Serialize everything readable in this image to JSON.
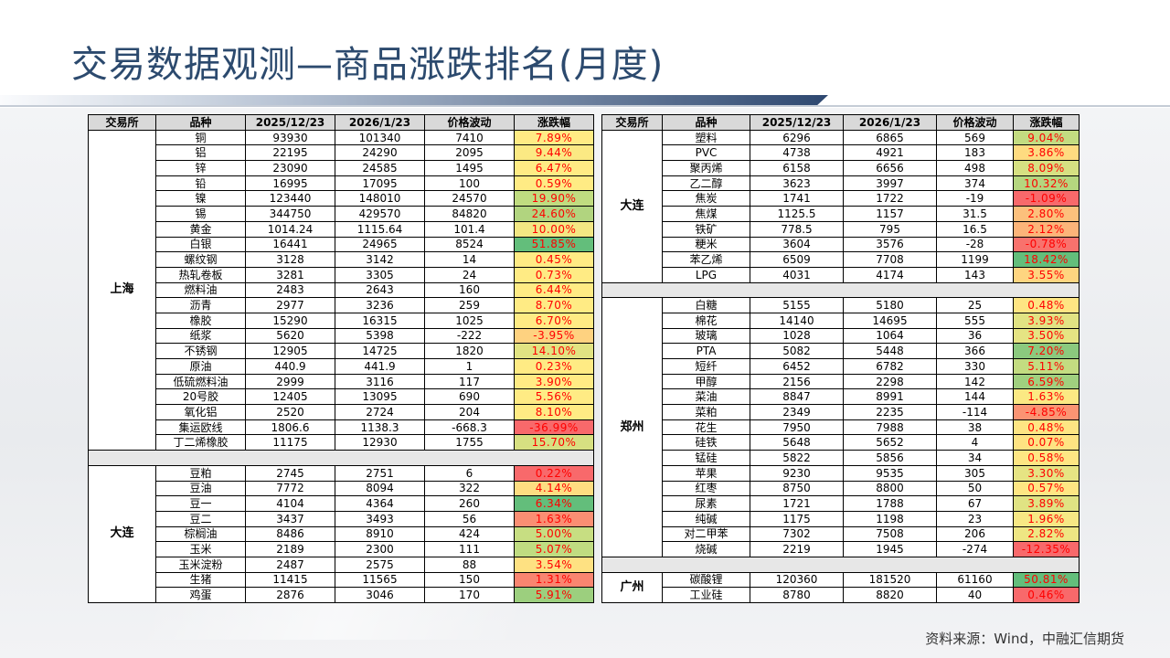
{
  "title": "交易数据观测—商品涨跌排名(月度)",
  "source": "资料来源：Wind，中融汇信期货",
  "headers": [
    "交易所",
    "品种",
    "2025/12/23",
    "2026/1/23",
    "价格波动",
    "涨跌幅"
  ],
  "left_groups": [
    {
      "exchange": "上海",
      "rows": [
        {
          "name": "铜",
          "p1": "93930",
          "p2": "101340",
          "diff": "7410",
          "pct": "7.89%",
          "color": "#ffeb84"
        },
        {
          "name": "铝",
          "p1": "22195",
          "p2": "24290",
          "diff": "2095",
          "pct": "9.44%",
          "color": "#fbe983"
        },
        {
          "name": "锌",
          "p1": "23090",
          "p2": "24585",
          "diff": "1495",
          "pct": "6.47%",
          "color": "#ffeb84"
        },
        {
          "name": "铅",
          "p1": "16995",
          "p2": "17095",
          "diff": "100",
          "pct": "0.59%",
          "color": "#ffeb84"
        },
        {
          "name": "镍",
          "p1": "123440",
          "p2": "148010",
          "diff": "24570",
          "pct": "19.90%",
          "color": "#c0dc80"
        },
        {
          "name": "锡",
          "p1": "344750",
          "p2": "429570",
          "diff": "84820",
          "pct": "24.60%",
          "color": "#b1d47f"
        },
        {
          "name": "黄金",
          "p1": "1014.24",
          "p2": "1115.64",
          "diff": "101.4",
          "pct": "10.00%",
          "color": "#f3e783"
        },
        {
          "name": "白银",
          "p1": "16441",
          "p2": "24965",
          "diff": "8524",
          "pct": "51.85%",
          "color": "#63be7b"
        },
        {
          "name": "螺纹钢",
          "p1": "3128",
          "p2": "3142",
          "diff": "14",
          "pct": "0.45%",
          "color": "#ffeb84"
        },
        {
          "name": "热轧卷板",
          "p1": "3281",
          "p2": "3305",
          "diff": "24",
          "pct": "0.73%",
          "color": "#ffeb84"
        },
        {
          "name": "燃料油",
          "p1": "2483",
          "p2": "2643",
          "diff": "160",
          "pct": "6.44%",
          "color": "#ffeb84"
        },
        {
          "name": "沥青",
          "p1": "2977",
          "p2": "3236",
          "diff": "259",
          "pct": "8.70%",
          "color": "#ffeb84"
        },
        {
          "name": "橡胶",
          "p1": "15290",
          "p2": "16315",
          "diff": "1025",
          "pct": "6.70%",
          "color": "#ffeb84"
        },
        {
          "name": "纸浆",
          "p1": "5620",
          "p2": "5398",
          "diff": "-222",
          "pct": "-3.95%",
          "color": "#fed280"
        },
        {
          "name": "不锈钢",
          "p1": "12905",
          "p2": "14725",
          "diff": "1820",
          "pct": "14.10%",
          "color": "#e1e382"
        },
        {
          "name": "原油",
          "p1": "440.9",
          "p2": "441.9",
          "diff": "1",
          "pct": "0.23%",
          "color": "#ffeb84"
        },
        {
          "name": "低硫燃料油",
          "p1": "2999",
          "p2": "3116",
          "diff": "117",
          "pct": "3.90%",
          "color": "#ffeb84"
        },
        {
          "name": "20号胶",
          "p1": "12405",
          "p2": "13095",
          "diff": "690",
          "pct": "5.56%",
          "color": "#ffeb84"
        },
        {
          "name": "氧化铝",
          "p1": "2520",
          "p2": "2724",
          "diff": "204",
          "pct": "8.10%",
          "color": "#ffeb84"
        },
        {
          "name": "集运欧线",
          "p1": "1806.6",
          "p2": "1138.3",
          "diff": "-668.3",
          "pct": "-36.99%",
          "color": "#f8696b"
        },
        {
          "name": "丁二烯橡胶",
          "p1": "11175",
          "p2": "12930",
          "diff": "1755",
          "pct": "15.70%",
          "color": "#d7e081"
        }
      ]
    },
    {
      "exchange": "大连",
      "rows": [
        {
          "name": "豆粕",
          "p1": "2745",
          "p2": "2751",
          "diff": "6",
          "pct": "0.22%",
          "color": "#f8696b"
        },
        {
          "name": "豆油",
          "p1": "7772",
          "p2": "8094",
          "diff": "322",
          "pct": "4.14%",
          "color": "#fedd81"
        },
        {
          "name": "豆一",
          "p1": "4104",
          "p2": "4364",
          "diff": "260",
          "pct": "6.34%",
          "color": "#63be7b"
        },
        {
          "name": "豆二",
          "p1": "3437",
          "p2": "3493",
          "diff": "56",
          "pct": "1.63%",
          "color": "#fa8e73"
        },
        {
          "name": "棕榈油",
          "p1": "8486",
          "p2": "8910",
          "diff": "424",
          "pct": "5.00%",
          "color": "#c7de82"
        },
        {
          "name": "玉米",
          "p1": "2189",
          "p2": "2300",
          "diff": "111",
          "pct": "5.07%",
          "color": "#c0dc81"
        },
        {
          "name": "玉米淀粉",
          "p1": "2487",
          "p2": "2575",
          "diff": "88",
          "pct": "3.54%",
          "color": "#fee182"
        },
        {
          "name": "生猪",
          "p1": "11415",
          "p2": "11565",
          "diff": "150",
          "pct": "1.31%",
          "color": "#f98570"
        },
        {
          "name": "鸡蛋",
          "p1": "2876",
          "p2": "3046",
          "diff": "170",
          "pct": "5.91%",
          "color": "#9ccf7e"
        }
      ]
    }
  ],
  "right_groups": [
    {
      "exchange": "大连",
      "rows": [
        {
          "name": "塑料",
          "p1": "6296",
          "p2": "6865",
          "diff": "569",
          "pct": "9.04%",
          "color": "#c3dc81"
        },
        {
          "name": "PVC",
          "p1": "4738",
          "p2": "4921",
          "diff": "183",
          "pct": "3.86%",
          "color": "#fedb80"
        },
        {
          "name": "聚丙烯",
          "p1": "6158",
          "p2": "6656",
          "diff": "498",
          "pct": "8.09%",
          "color": "#d6e082"
        },
        {
          "name": "乙二醇",
          "p1": "3623",
          "p2": "3997",
          "diff": "374",
          "pct": "10.32%",
          "color": "#b5d67f"
        },
        {
          "name": "焦炭",
          "p1": "1741",
          "p2": "1722",
          "diff": "-19",
          "pct": "-1.09%",
          "color": "#f8696b"
        },
        {
          "name": "焦煤",
          "p1": "1125.5",
          "p2": "1157",
          "diff": "31.5",
          "pct": "2.80%",
          "color": "#fcc07c"
        },
        {
          "name": "铁矿",
          "p1": "778.5",
          "p2": "795",
          "diff": "16.5",
          "pct": "2.12%",
          "color": "#fcb479"
        },
        {
          "name": "粳米",
          "p1": "3604",
          "p2": "3576",
          "diff": "-28",
          "pct": "-0.78%",
          "color": "#f8726d"
        },
        {
          "name": "苯乙烯",
          "p1": "6509",
          "p2": "7708",
          "diff": "1199",
          "pct": "18.42%",
          "color": "#63be7b"
        },
        {
          "name": "LPG",
          "p1": "4031",
          "p2": "4174",
          "diff": "143",
          "pct": "3.55%",
          "color": "#fed580"
        }
      ]
    },
    {
      "exchange": "郑州",
      "rows": [
        {
          "name": "白糖",
          "p1": "5155",
          "p2": "5180",
          "diff": "25",
          "pct": "0.48%",
          "color": "#fee583"
        },
        {
          "name": "棉花",
          "p1": "14140",
          "p2": "14695",
          "diff": "555",
          "pct": "3.93%",
          "color": "#e1e383"
        },
        {
          "name": "玻璃",
          "p1": "1028",
          "p2": "1064",
          "diff": "36",
          "pct": "3.50%",
          "color": "#e5e483"
        },
        {
          "name": "PTA",
          "p1": "5082",
          "p2": "5448",
          "diff": "366",
          "pct": "7.20%",
          "color": "#8bc97e"
        },
        {
          "name": "短纤",
          "p1": "6452",
          "p2": "6782",
          "diff": "330",
          "pct": "5.11%",
          "color": "#c3dc81"
        },
        {
          "name": "甲醇",
          "p1": "2156",
          "p2": "2298",
          "diff": "142",
          "pct": "6.59%",
          "color": "#a0d07f"
        },
        {
          "name": "菜油",
          "p1": "8847",
          "p2": "8991",
          "diff": "144",
          "pct": "1.63%",
          "color": "#fbe983"
        },
        {
          "name": "菜粕",
          "p1": "2349",
          "p2": "2235",
          "diff": "-114",
          "pct": "-4.85%",
          "color": "#fa9473"
        },
        {
          "name": "花生",
          "p1": "7950",
          "p2": "7988",
          "diff": "38",
          "pct": "0.48%",
          "color": "#fee583"
        },
        {
          "name": "硅铁",
          "p1": "5648",
          "p2": "5652",
          "diff": "4",
          "pct": "0.07%",
          "color": "#fee382"
        },
        {
          "name": "锰硅",
          "p1": "5822",
          "p2": "5856",
          "diff": "34",
          "pct": "0.58%",
          "color": "#fee683"
        },
        {
          "name": "苹果",
          "p1": "9230",
          "p2": "9535",
          "diff": "305",
          "pct": "3.30%",
          "color": "#e6e483"
        },
        {
          "name": "红枣",
          "p1": "8750",
          "p2": "8800",
          "diff": "50",
          "pct": "0.57%",
          "color": "#fee683"
        },
        {
          "name": "尿素",
          "p1": "1721",
          "p2": "1788",
          "diff": "67",
          "pct": "3.89%",
          "color": "#e0e383"
        },
        {
          "name": "纯碱",
          "p1": "1175",
          "p2": "1198",
          "diff": "23",
          "pct": "1.96%",
          "color": "#f7e884"
        },
        {
          "name": "对二甲苯",
          "p1": "7302",
          "p2": "7508",
          "diff": "206",
          "pct": "2.82%",
          "color": "#eee683"
        },
        {
          "name": "烧碱",
          "p1": "2219",
          "p2": "1945",
          "diff": "-274",
          "pct": "-12.35%",
          "color": "#f8696b"
        }
      ]
    },
    {
      "exchange": "广州",
      "rows": [
        {
          "name": "碳酸锂",
          "p1": "120360",
          "p2": "181520",
          "diff": "61160",
          "pct": "50.81%",
          "color": "#63be7b"
        },
        {
          "name": "工业硅",
          "p1": "8780",
          "p2": "8820",
          "diff": "40",
          "pct": "0.46%",
          "color": "#f8696b"
        }
      ]
    }
  ]
}
